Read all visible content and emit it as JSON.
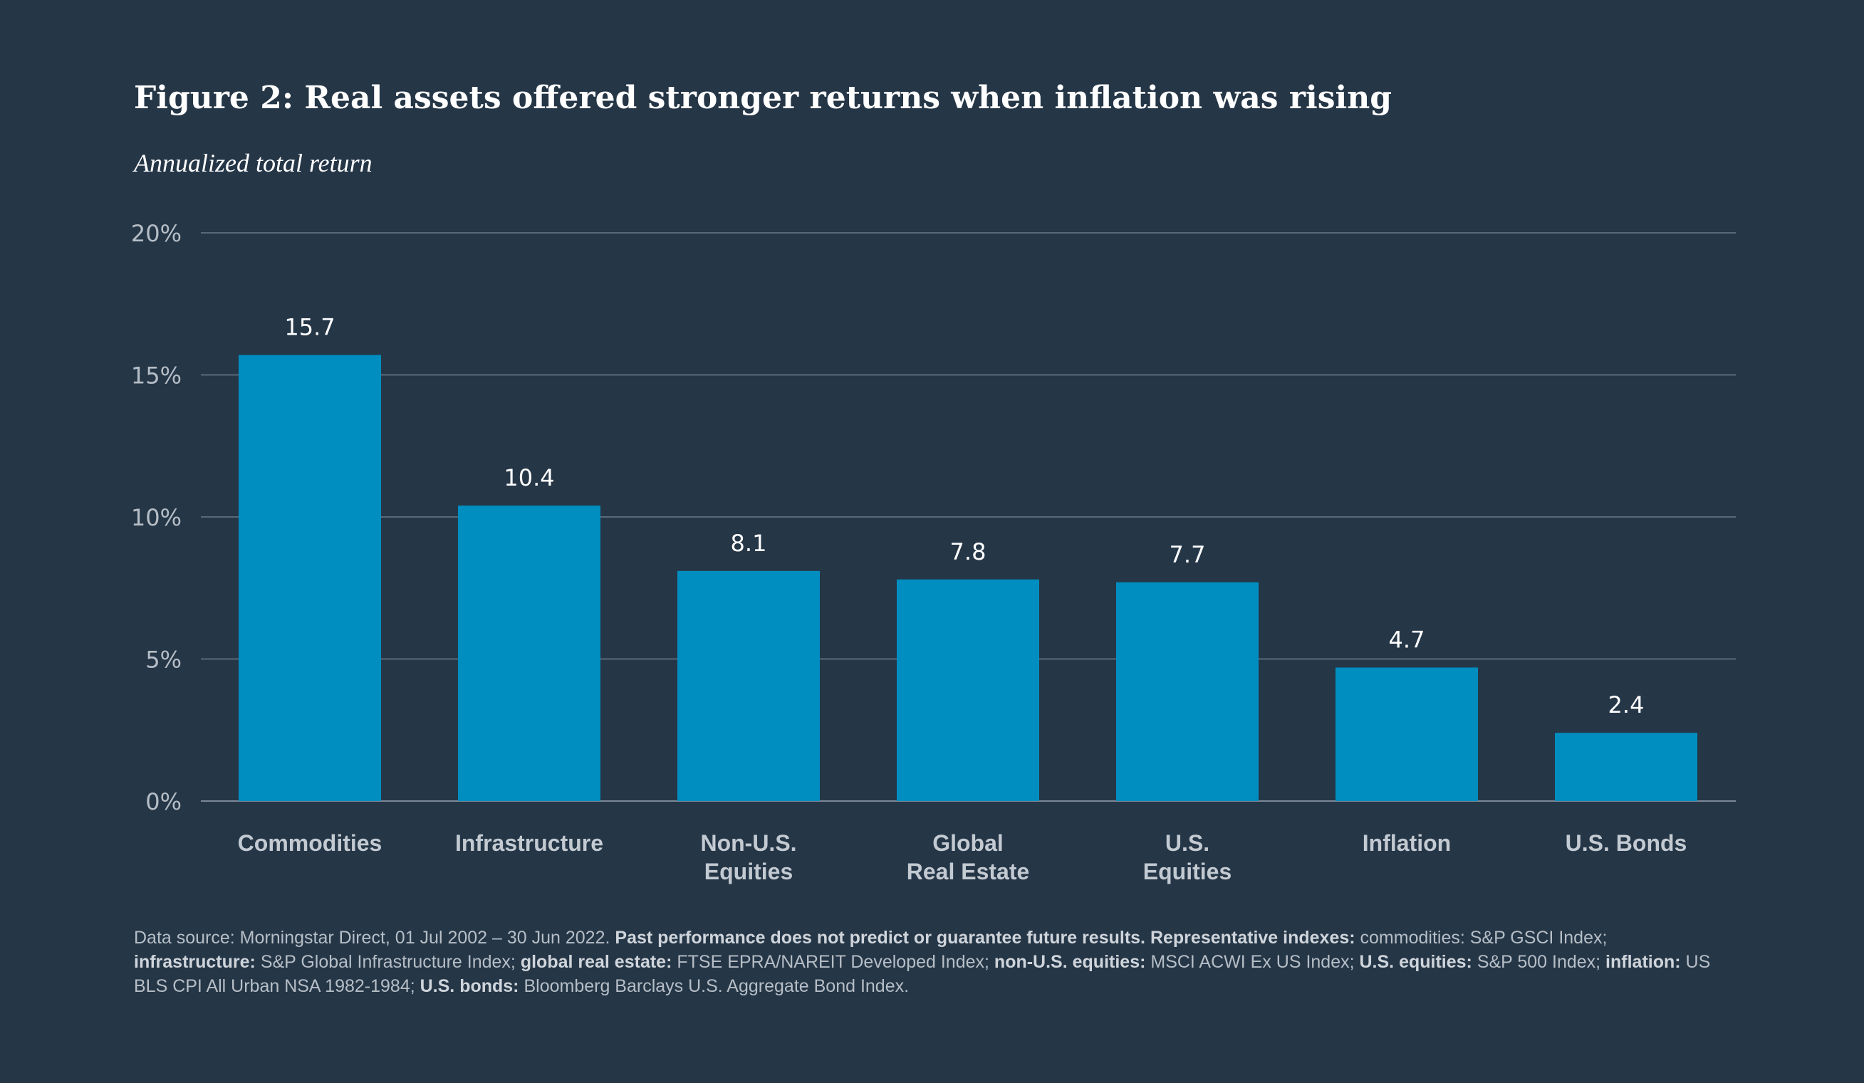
{
  "chart_data": {
    "type": "bar",
    "title": "Figure 2: Real assets offered stronger returns when inflation was rising",
    "subtitle": "Annualized total return",
    "xlabel": "",
    "ylabel": "",
    "categories": [
      "Commodities",
      "Infrastructure",
      "Non-U.S. Equities",
      "Global Real Estate",
      "U.S. Equities",
      "Inflation",
      "U.S. Bonds"
    ],
    "category_lines": [
      [
        "Commodities"
      ],
      [
        "Infrastructure"
      ],
      [
        "Non-U.S.",
        "Equities"
      ],
      [
        "Global",
        "Real Estate"
      ],
      [
        "U.S.",
        "Equities"
      ],
      [
        "Inflation"
      ],
      [
        "U.S. Bonds"
      ]
    ],
    "values": [
      15.7,
      10.4,
      8.1,
      7.8,
      7.7,
      4.7,
      2.4
    ],
    "value_labels": [
      "15.7",
      "10.4",
      "8.1",
      "7.8",
      "7.7",
      "4.7",
      "2.4"
    ],
    "yticks": [
      0,
      5,
      10,
      15,
      20
    ],
    "ytick_labels": [
      "0%",
      "5%",
      "10%",
      "15%",
      "20%"
    ],
    "ylim": [
      0,
      20
    ],
    "grid": true,
    "legend": "none"
  },
  "colors": {
    "background": "#253647",
    "bar": "#008ec0",
    "gridline": "#5a6978",
    "tick_text": "#b6bec6",
    "category_text": "#c3cad1"
  },
  "footnote": {
    "segments": [
      {
        "text": "Data source: Morningstar Direct, 01 Jul 2002 – 30 Jun 2022. ",
        "bold": false
      },
      {
        "text": "Past performance does not predict or guarantee future results. Representative indexes:",
        "bold": true
      },
      {
        "text": " commodities: S&P GSCI Index; ",
        "bold": false
      },
      {
        "text": "infrastructure:",
        "bold": true
      },
      {
        "text": " S&P Global Infrastructure Index; ",
        "bold": false
      },
      {
        "text": "global real estate:",
        "bold": true
      },
      {
        "text": " FTSE EPRA/NAREIT Developed Index; ",
        "bold": false
      },
      {
        "text": "non-U.S. equities:",
        "bold": true
      },
      {
        "text": " MSCI ACWI Ex US Index; ",
        "bold": false
      },
      {
        "text": "U.S. equities:",
        "bold": true
      },
      {
        "text": " S&P 500 Index; ",
        "bold": false
      },
      {
        "text": "inflation:",
        "bold": true
      },
      {
        "text": " US BLS CPI All Urban NSA 1982-1984; ",
        "bold": false
      },
      {
        "text": "U.S. bonds:",
        "bold": true
      },
      {
        "text": " Bloomberg Barclays U.S. Aggregate Bond Index.",
        "bold": false
      }
    ]
  }
}
